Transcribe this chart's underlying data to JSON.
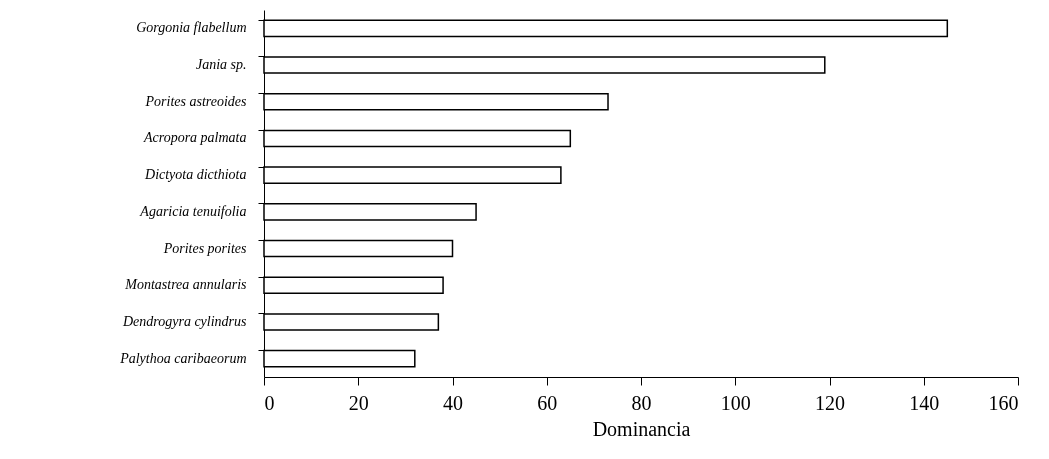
{
  "chart_data": {
    "type": "bar",
    "orientation": "horizontal",
    "xlabel": "Dominancia",
    "categories": [
      "Gorgonia flabellum",
      "Jania sp.",
      "Porites astreoides",
      "Acropora palmata",
      "Dictyota dicthiota",
      "Agaricia tenuifolia",
      "Porites porites",
      "Montastrea annularis",
      "Dendrogyra cylindrus",
      "Palythoa caribaeorum"
    ],
    "values": [
      145,
      119,
      73,
      65,
      63,
      45,
      40,
      38,
      37,
      32
    ],
    "color": "#ffffff",
    "xlim": [
      0,
      160
    ],
    "xticks": [
      0,
      20,
      40,
      60,
      80,
      100,
      120,
      140,
      160
    ],
    "grid": false
  }
}
